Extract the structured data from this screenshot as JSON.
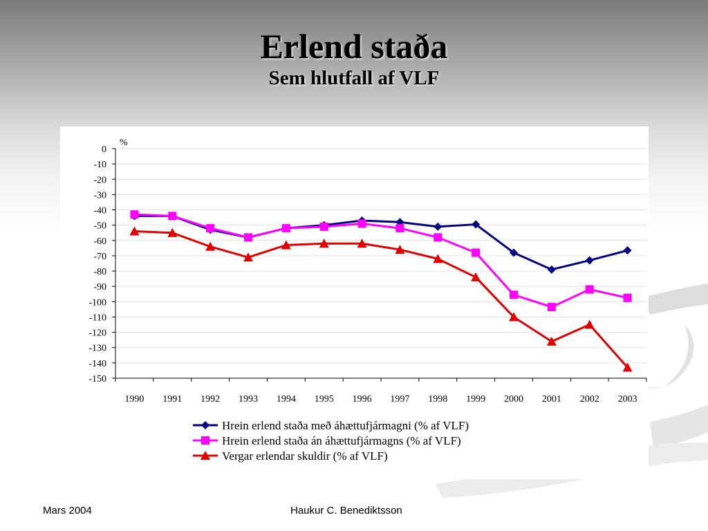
{
  "slide": {
    "title": "Erlend staða",
    "subtitle": "Sem hlutfall af VLF",
    "footer_left": "Mars 2004",
    "footer_center": "Haukur C. Benediktsson"
  },
  "colors": {
    "series1": "#000080",
    "series2": "#FF00FF",
    "series3": "#E00000",
    "gridline": "#e0e0e0"
  },
  "chart_data": {
    "type": "line",
    "unit_label": "%",
    "ylim": [
      -150,
      0
    ],
    "ytick_step": 10,
    "grid": true,
    "legend_position": "bottom",
    "categories": [
      "1990",
      "1991",
      "1992",
      "1993",
      "1994",
      "1995",
      "1996",
      "1997",
      "1998",
      "1999",
      "2000",
      "2001",
      "2002",
      "2003"
    ],
    "series": [
      {
        "name": "Hrein erlend staða með áhættufjármagni (% af VLF)",
        "marker": "diamond",
        "color_key": "series1",
        "values": [
          -44,
          -44,
          -53,
          -58,
          -52,
          -50,
          -47,
          -48,
          -51,
          -49.5,
          -68,
          -79,
          -73,
          -66.5
        ]
      },
      {
        "name": "Hrein erlend staða án áhættufjármagns (% af VLF)",
        "marker": "square",
        "color_key": "series2",
        "values": [
          -43,
          -44,
          -52,
          -58,
          -52,
          -51,
          -49,
          -52,
          -58,
          -68,
          -95.5,
          -103.5,
          -92,
          -97.5
        ]
      },
      {
        "name": "Vergar erlendar skuldir (% af VLF)",
        "marker": "triangle",
        "color_key": "series3",
        "values": [
          -54,
          -55,
          -64,
          -71,
          -63,
          -62,
          -62,
          -66,
          -72,
          -84,
          -110,
          -126,
          -115,
          -143
        ]
      }
    ]
  }
}
